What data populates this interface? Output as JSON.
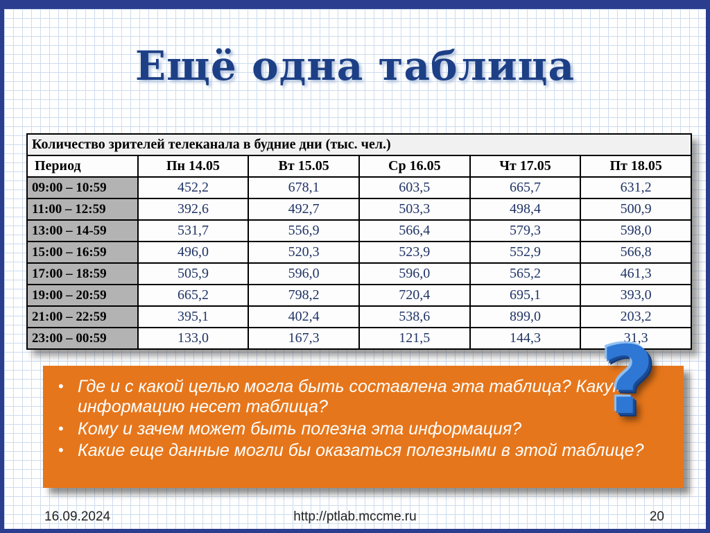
{
  "slide": {
    "title": "Ещё одна таблица",
    "question_mark": "?",
    "footer": {
      "date": "16.09.2024",
      "url": "http://ptlab.mccme.ru",
      "page": "20"
    }
  },
  "table": {
    "caption": "Количество зрителей телеканала в будние дни (тыс. чел.)",
    "columns": [
      "Период",
      "Пн 14.05",
      "Вт 15.05",
      "Ср 16.05",
      "Чт 17.05",
      "Пт 18.05"
    ],
    "rows": [
      {
        "period": "09:00 – 10:59",
        "values": [
          "452,2",
          "678,1",
          "603,5",
          "665,7",
          "631,2"
        ]
      },
      {
        "period": "11:00 – 12:59",
        "values": [
          "392,6",
          "492,7",
          "503,3",
          "498,4",
          "500,9"
        ]
      },
      {
        "period": "13:00 – 14-59",
        "values": [
          "531,7",
          "556,9",
          "566,4",
          "579,3",
          "598,0"
        ]
      },
      {
        "period": "15:00 – 16:59",
        "values": [
          "496,0",
          "520,3",
          "523,9",
          "552,9",
          "566,8"
        ]
      },
      {
        "period": "17:00 – 18:59",
        "values": [
          "505,9",
          "596,0",
          "596,0",
          "565,2",
          "461,3"
        ]
      },
      {
        "period": "19:00 – 20:59",
        "values": [
          "665,2",
          "798,2",
          "720,4",
          "695,1",
          "393,0"
        ]
      },
      {
        "period": "21:00 – 22:59",
        "values": [
          "395,1",
          "402,4",
          "538,6",
          "899,0",
          "203,2"
        ]
      },
      {
        "period": "23:00 – 00:59",
        "values": [
          "133,0",
          "167,3",
          "121,5",
          "144,3",
          "31,3"
        ]
      }
    ]
  },
  "questions": {
    "items": [
      "Где и с какой целью могла быть составлена эта таблица? Какую информацию несет таблица?",
      "Кому и зачем может быть полезна эта информация?",
      "Какие еще данные могли бы оказаться полезными в этой таблице?"
    ]
  }
}
